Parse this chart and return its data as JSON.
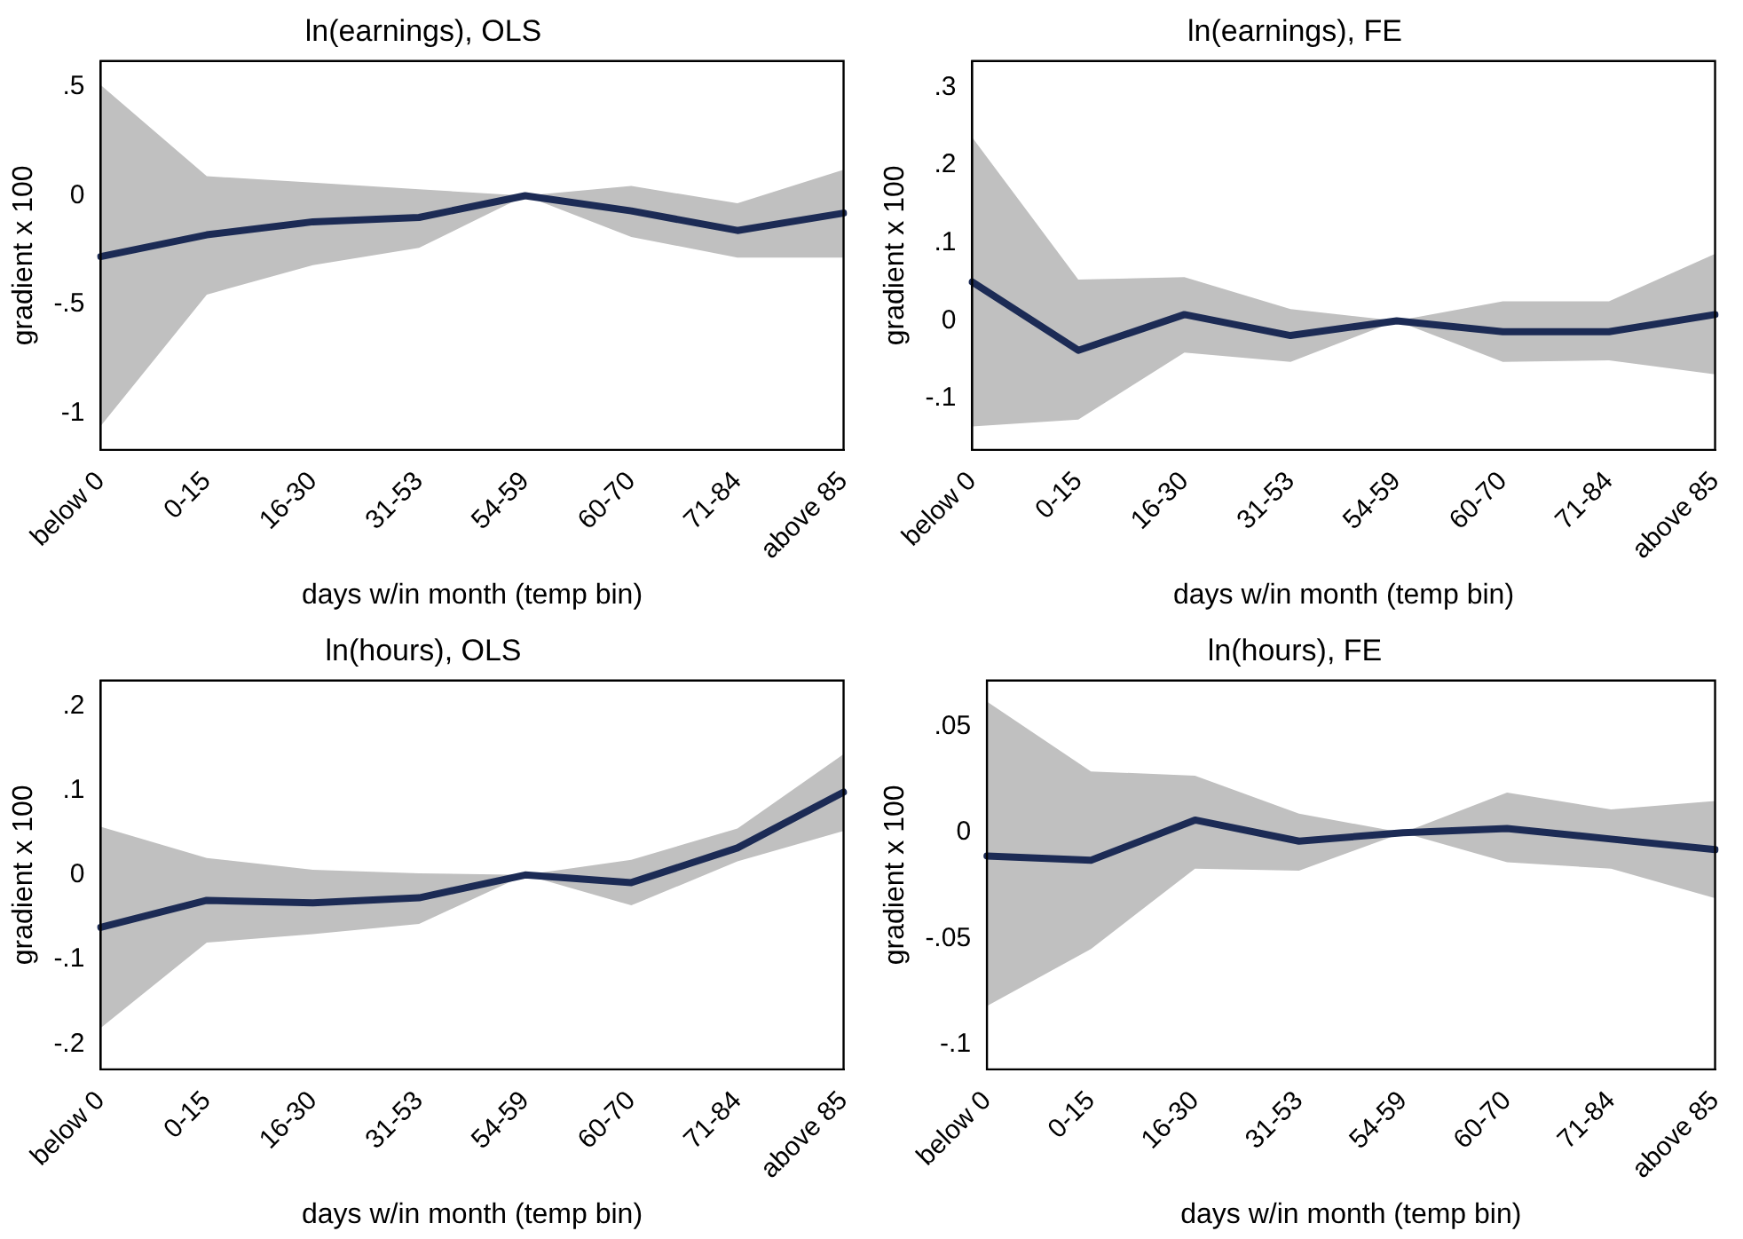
{
  "chart_data": [
    {
      "type": "line",
      "title": "ln(earnings), OLS",
      "xlabel": "days w/in month (temp bin)",
      "ylabel": "gradient x 100",
      "categories": [
        "below 0",
        "0-15",
        "16-30",
        "31-53",
        "54-59",
        "60-70",
        "71-84",
        "above 85"
      ],
      "series": [
        {
          "color": "#1c2b55",
          "values": [
            -0.28,
            -0.18,
            -0.12,
            -0.1,
            0,
            -0.07,
            -0.16,
            -0.08
          ],
          "lower": [
            -1.06,
            -0.455,
            -0.32,
            -0.24,
            0,
            -0.19,
            -0.285,
            -0.285
          ],
          "upper": [
            0.51,
            0.09,
            0.06,
            0.03,
            0,
            0.045,
            -0.035,
            0.12
          ]
        }
      ],
      "ylim": [
        -1.17,
        0.62
      ],
      "yticks": [
        {
          "value": -1,
          "label": "-1"
        },
        {
          "value": -0.5,
          "label": "-.5"
        },
        {
          "value": 0,
          "label": "0"
        },
        {
          "value": 0.5,
          "label": ".5"
        }
      ],
      "grid": false
    },
    {
      "type": "line",
      "title": "ln(earnings), FE",
      "xlabel": "days w/in month (temp bin)",
      "ylabel": "gradient x 100",
      "categories": [
        "below 0",
        "0-15",
        "16-30",
        "31-53",
        "54-59",
        "60-70",
        "71-84",
        "above 85"
      ],
      "series": [
        {
          "color": "#1c2b55",
          "values": [
            0.05,
            -0.038,
            0.008,
            -0.019,
            0,
            -0.014,
            -0.014,
            0.008
          ],
          "lower": [
            -0.136,
            -0.127,
            -0.041,
            -0.053,
            0,
            -0.053,
            -0.051,
            -0.069
          ],
          "upper": [
            0.236,
            0.053,
            0.056,
            0.015,
            0,
            0.025,
            0.025,
            0.086
          ]
        }
      ],
      "ylim": [
        -0.166,
        0.334
      ],
      "yticks": [
        {
          "value": -0.1,
          "label": "-.1"
        },
        {
          "value": 0,
          "label": "0"
        },
        {
          "value": 0.1,
          "label": ".1"
        },
        {
          "value": 0.2,
          "label": ".2"
        },
        {
          "value": 0.3,
          "label": ".3"
        }
      ],
      "grid": false
    },
    {
      "type": "line",
      "title": "ln(hours), OLS",
      "xlabel": "days w/in month (temp bin)",
      "ylabel": "gradient x 100",
      "categories": [
        "below 0",
        "0-15",
        "16-30",
        "31-53",
        "54-59",
        "60-70",
        "71-84",
        "above 85"
      ],
      "series": [
        {
          "color": "#1c2b55",
          "values": [
            -0.062,
            -0.03,
            -0.033,
            -0.027,
            0,
            -0.009,
            0.032,
            0.098
          ],
          "lower": [
            -0.181,
            -0.08,
            -0.07,
            -0.058,
            0,
            -0.036,
            0.016,
            0.052
          ],
          "upper": [
            0.057,
            0.02,
            0.006,
            0.002,
            0,
            0.018,
            0.055,
            0.143
          ]
        }
      ],
      "ylim": [
        -0.23,
        0.23
      ],
      "yticks": [
        {
          "value": -0.2,
          "label": "-.2"
        },
        {
          "value": -0.1,
          "label": "-.1"
        },
        {
          "value": 0,
          "label": "0"
        },
        {
          "value": 0.1,
          "label": ".1"
        },
        {
          "value": 0.2,
          "label": ".2"
        }
      ],
      "grid": false
    },
    {
      "type": "line",
      "title": "ln(hours), FE",
      "xlabel": "days w/in month (temp bin)",
      "ylabel": "gradient x 100",
      "categories": [
        "below 0",
        "0-15",
        "16-30",
        "31-53",
        "54-59",
        "60-70",
        "71-84",
        "above 85"
      ],
      "series": [
        {
          "color": "#1c2b55",
          "values": [
            -0.011,
            -0.013,
            0.006,
            -0.004,
            0,
            0.002,
            -0.003,
            -0.008
          ],
          "lower": [
            -0.082,
            -0.055,
            -0.017,
            -0.018,
            0,
            -0.014,
            -0.017,
            -0.031
          ],
          "upper": [
            0.062,
            0.029,
            0.027,
            0.009,
            0,
            0.019,
            0.011,
            0.015
          ]
        }
      ],
      "ylim": [
        -0.112,
        0.072
      ],
      "yticks": [
        {
          "value": -0.1,
          "label": "-.1"
        },
        {
          "value": -0.05,
          "label": "-.05"
        },
        {
          "value": 0,
          "label": "0"
        },
        {
          "value": 0.05,
          "label": ".05"
        }
      ],
      "grid": false
    }
  ]
}
